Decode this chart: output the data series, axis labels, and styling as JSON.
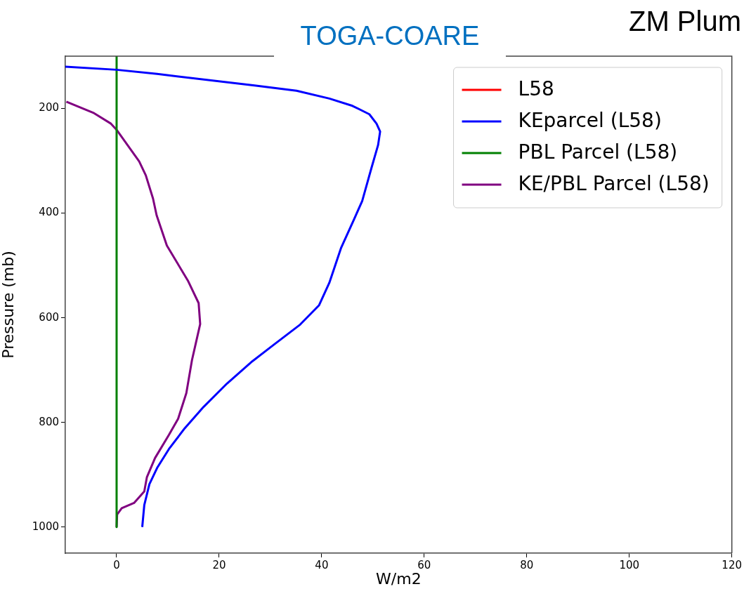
{
  "chart_data": {
    "type": "line",
    "title": "TOGA-COARE",
    "annotations": [
      "ZM Plum"
    ],
    "xlabel": "W/m2",
    "ylabel": "Pressure (mb)",
    "xlim": [
      -10,
      120
    ],
    "xticks": [
      0,
      20,
      40,
      60,
      80,
      100,
      120
    ],
    "ylim": [
      1050,
      100
    ],
    "yticks": [
      200,
      400,
      600,
      800,
      1000
    ],
    "grid": false,
    "legend": "top right",
    "marker": "none",
    "line_style": "solid",
    "series": [
      {
        "name": "L58",
        "color": "#ff0000",
        "x": [
          null,
          null
        ],
        "values": [
          null,
          null
        ]
      },
      {
        "name": "KEparcel (L58)",
        "color": "#0000ff",
        "x": [
          -10,
          0,
          7.9,
          26.9,
          35.1,
          41.5,
          46,
          49.3,
          50.7,
          51.4,
          51,
          49.7,
          47.9,
          46.3,
          43.8,
          41.5,
          39.5,
          35.8,
          30.6,
          26.5,
          21.5,
          17,
          13.3,
          10.2,
          7.9,
          6.4,
          5.4,
          5
        ],
        "values": [
          120,
          126,
          134,
          156,
          166,
          181,
          195,
          211,
          229,
          244,
          270,
          314,
          377,
          412,
          466,
          533,
          576,
          613,
          652,
          683,
          726,
          770,
          811,
          851,
          887,
          918,
          958,
          1000
        ]
      },
      {
        "name": "PBL Parcel (L58)",
        "color": "#008000",
        "x": [
          0,
          0
        ],
        "values": [
          100,
          1000
        ]
      },
      {
        "name": "KE/PBL Parcel (L58)",
        "color": "#800080",
        "x": [
          -9.8,
          -4.4,
          -1.1,
          0.1,
          4.4,
          5.7,
          7.1,
          7.8,
          9.8,
          13.9,
          16,
          16.3,
          14.7,
          13.6,
          12,
          10.2,
          7.5,
          5.9,
          5.4,
          3.4,
          1,
          0.1,
          0
        ],
        "values": [
          187,
          209,
          229,
          242,
          301,
          328,
          372,
          404,
          462,
          529,
          572,
          612,
          681,
          744,
          793,
          824,
          868,
          905,
          932,
          954,
          964,
          976,
          1000
        ]
      }
    ]
  }
}
